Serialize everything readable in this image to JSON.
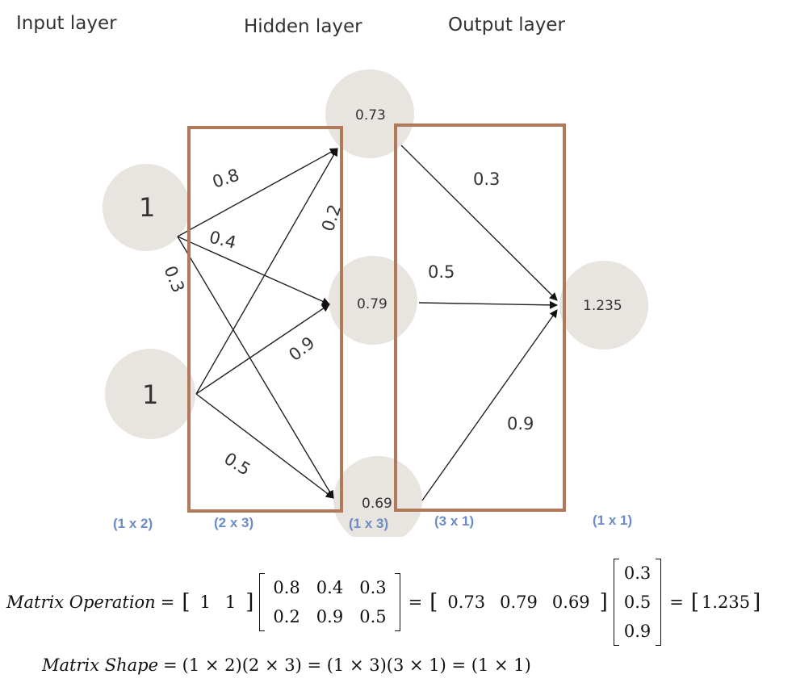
{
  "layers": {
    "input": "Input layer",
    "hidden": "Hidden layer",
    "output": "Output layer"
  },
  "nodes": {
    "input": [
      "1",
      "1"
    ],
    "hidden": [
      "0.73",
      "0.79",
      "0.69"
    ],
    "output": [
      "1.235"
    ]
  },
  "weights": {
    "input_hidden": [
      "0.8",
      "0.2",
      "0.4",
      "0.3",
      "0.9",
      "0.5"
    ],
    "hidden_output": [
      "0.3",
      "0.5",
      "0.9"
    ]
  },
  "shapes": [
    "(1 x 2)",
    "(2 x 3)",
    "(1 x 3)",
    "(3 x 1)",
    "(1 x 1)"
  ],
  "equation": {
    "op_label": "Matrix Operation",
    "input_vector": [
      "1",
      "1"
    ],
    "weight_matrix": [
      [
        "0.8",
        "0.4",
        "0.3"
      ],
      [
        "0.2",
        "0.9",
        "0.5"
      ]
    ],
    "hidden_vector": [
      "0.73",
      "0.79",
      "0.69"
    ],
    "output_weights": [
      "0.3",
      "0.5",
      "0.9"
    ],
    "result": "1.235",
    "shape_label": "Matrix Shape",
    "shape_expr": "(1 × 2)(2 × 3) = (1 × 3)(3 × 1) = (1 × 1)"
  },
  "colors": {
    "node_fill": "#e8e4df",
    "box_stroke": "#b07a5a",
    "shape_label": "#6b8cc7"
  }
}
